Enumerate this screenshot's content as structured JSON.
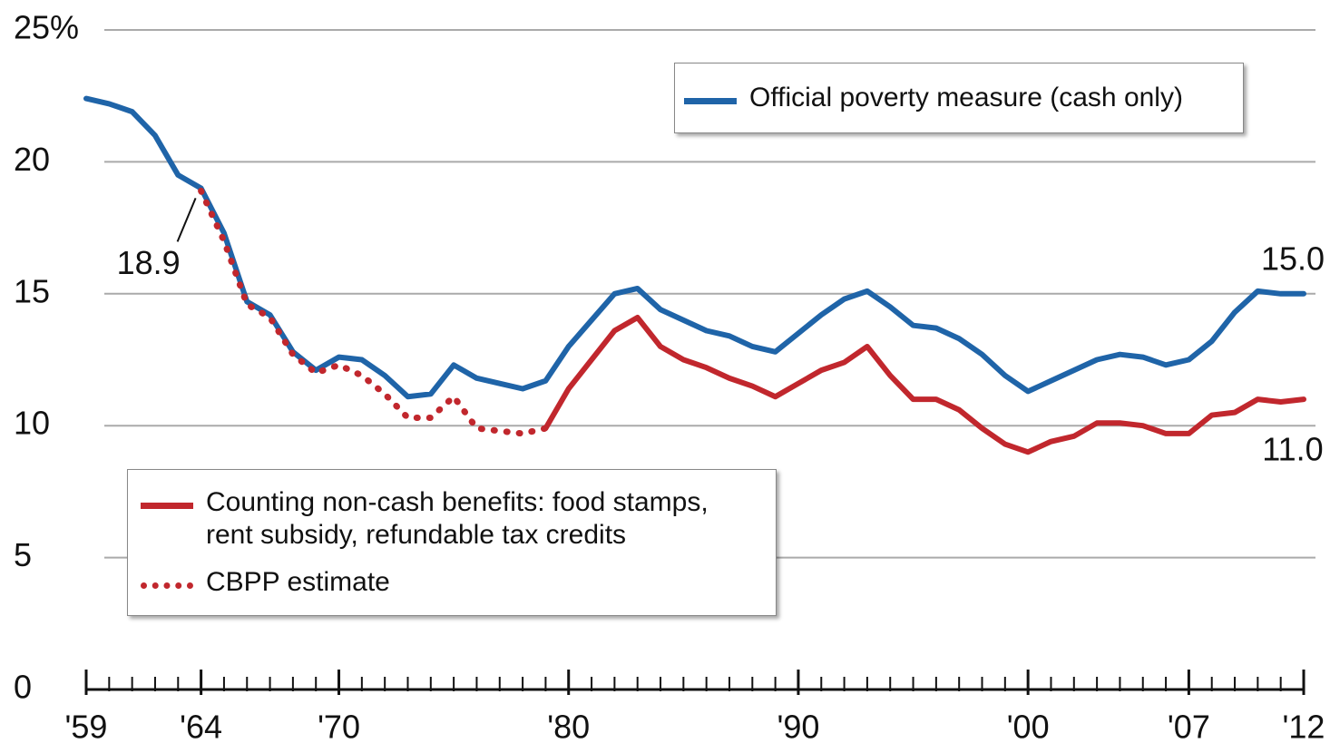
{
  "chart_data": {
    "type": "line",
    "x": [
      1959,
      1960,
      1961,
      1962,
      1963,
      1964,
      1965,
      1966,
      1967,
      1968,
      1969,
      1970,
      1971,
      1972,
      1973,
      1974,
      1975,
      1976,
      1977,
      1978,
      1979,
      1980,
      1981,
      1982,
      1983,
      1984,
      1985,
      1986,
      1987,
      1988,
      1989,
      1990,
      1991,
      1992,
      1993,
      1994,
      1995,
      1996,
      1997,
      1998,
      1999,
      2000,
      2001,
      2002,
      2003,
      2004,
      2005,
      2006,
      2007,
      2008,
      2009,
      2010,
      2011,
      2012
    ],
    "series": [
      {
        "name": "Official poverty measure (cash only)",
        "color": "#1f64a8",
        "style": "solid",
        "values": [
          22.4,
          22.2,
          21.9,
          21.0,
          19.5,
          19.0,
          17.3,
          14.7,
          14.2,
          12.8,
          12.1,
          12.6,
          12.5,
          11.9,
          11.1,
          11.2,
          12.3,
          11.8,
          11.6,
          11.4,
          11.7,
          13.0,
          14.0,
          15.0,
          15.2,
          14.4,
          14.0,
          13.6,
          13.4,
          13.0,
          12.8,
          13.5,
          14.2,
          14.8,
          15.1,
          14.5,
          13.8,
          13.7,
          13.3,
          12.7,
          11.9,
          11.3,
          11.7,
          12.1,
          12.5,
          12.7,
          12.6,
          12.3,
          12.5,
          13.2,
          14.3,
          15.1,
          15.0,
          15.0
        ],
        "value_labels": [
          null,
          null,
          null,
          null,
          null,
          null,
          null,
          null,
          null,
          null,
          null,
          null,
          null,
          null,
          null,
          null,
          null,
          null,
          null,
          null,
          null,
          null,
          null,
          null,
          null,
          null,
          null,
          null,
          null,
          null,
          null,
          null,
          null,
          null,
          null,
          null,
          null,
          null,
          null,
          null,
          null,
          null,
          null,
          null,
          null,
          null,
          null,
          null,
          null,
          null,
          null,
          null,
          null,
          "15.0"
        ]
      },
      {
        "name": "Counting non-cash benefits: food stamps, rent subsidy, refundable tax credits",
        "color": "#c1272d",
        "style": "solid",
        "values": [
          null,
          null,
          null,
          null,
          null,
          null,
          null,
          null,
          null,
          null,
          null,
          null,
          null,
          null,
          null,
          null,
          null,
          null,
          null,
          null,
          9.9,
          11.4,
          12.5,
          13.6,
          14.1,
          13.0,
          12.5,
          12.2,
          11.8,
          11.5,
          11.1,
          11.6,
          12.1,
          12.4,
          13.0,
          11.9,
          11.0,
          11.0,
          10.6,
          9.9,
          9.3,
          9.0,
          9.4,
          9.6,
          10.1,
          10.1,
          10.0,
          9.7,
          9.7,
          10.4,
          10.5,
          11.0,
          10.9,
          11.0
        ],
        "value_labels": [
          null,
          null,
          null,
          null,
          null,
          null,
          null,
          null,
          null,
          null,
          null,
          null,
          null,
          null,
          null,
          null,
          null,
          null,
          null,
          null,
          null,
          null,
          null,
          null,
          null,
          null,
          null,
          null,
          null,
          null,
          null,
          null,
          null,
          null,
          null,
          null,
          null,
          null,
          null,
          null,
          null,
          null,
          null,
          null,
          null,
          null,
          null,
          null,
          null,
          null,
          null,
          null,
          null,
          "11.0"
        ]
      },
      {
        "name": "CBPP estimate",
        "color": "#c1272d",
        "style": "dotted",
        "values": [
          null,
          null,
          null,
          null,
          null,
          18.9,
          17.0,
          14.6,
          14.1,
          12.7,
          12.0,
          12.3,
          11.9,
          11.2,
          10.3,
          10.3,
          11.1,
          9.9,
          9.8,
          9.7,
          9.9,
          null,
          null,
          null,
          null,
          null,
          null,
          null,
          null,
          null,
          null,
          null,
          null,
          null,
          null,
          null,
          null,
          null,
          null,
          null,
          null,
          null,
          null,
          null,
          null,
          null,
          null,
          null,
          null,
          null,
          null,
          null,
          null,
          null
        ],
        "value_labels": [
          null,
          null,
          null,
          null,
          null,
          18.9,
          null,
          null,
          null,
          null,
          null,
          null,
          null,
          null,
          null,
          null,
          null,
          null,
          null,
          null,
          null,
          null,
          null,
          null,
          null,
          null,
          null,
          null,
          null,
          null,
          null,
          null,
          null,
          null,
          null,
          null,
          null,
          null,
          null,
          null,
          null,
          null,
          null,
          null,
          null,
          null,
          null,
          null,
          null,
          null,
          null,
          null,
          null,
          null
        ]
      }
    ],
    "xlim": [
      1959,
      2012
    ],
    "xticks": [
      {
        "value": 1959,
        "label": "'59"
      },
      {
        "value": 1964,
        "label": "'64"
      },
      {
        "value": 1970,
        "label": "'70"
      },
      {
        "value": 1980,
        "label": "'80"
      },
      {
        "value": 1990,
        "label": "'90"
      },
      {
        "value": 2000,
        "label": "'00"
      },
      {
        "value": 2007,
        "label": "'07"
      },
      {
        "value": 2012,
        "label": "'12"
      }
    ],
    "ylim": [
      0,
      25
    ],
    "yticks": [
      0,
      5,
      10,
      15,
      20,
      {
        "value": 25,
        "label": "25%"
      }
    ],
    "grid": true
  }
}
